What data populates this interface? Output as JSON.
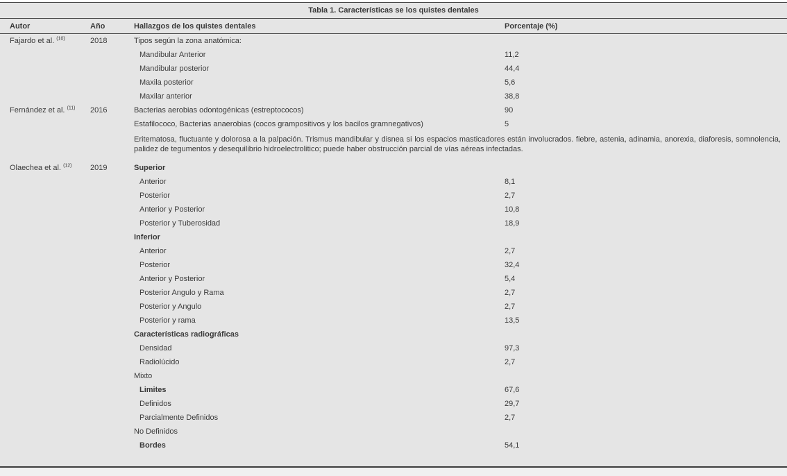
{
  "colors": {
    "table_background": "#e5e5e5",
    "rule_color": "#454545",
    "text_color": "#3a3a3a",
    "footer_strip": "#f0f0f0"
  },
  "table": {
    "title": "Tabla 1. Características se los quistes dentales",
    "headers": {
      "autor": "Autor",
      "ano": "Año",
      "hallazgos": "Hallazgos de los quistes dentales",
      "porcentaje": "Porcentaje (%)"
    },
    "rows": [
      {
        "autor": "Fajardo et al.",
        "ref": "(10)",
        "year": "2018",
        "text": "Tipos según la zona anatómica:",
        "pct": "",
        "indent": 0,
        "bold": false
      },
      {
        "text": "Mandibular Anterior",
        "pct": "11,2",
        "indent": 1,
        "bold": false
      },
      {
        "text": "Mandibular posterior",
        "pct": "44,4",
        "indent": 1,
        "bold": false
      },
      {
        "text": "Maxila posterior",
        "pct": "5,6",
        "indent": 1,
        "bold": false
      },
      {
        "text": "Maxilar anterior",
        "pct": "38,8",
        "indent": 1,
        "bold": false
      },
      {
        "autor": "Fernández et al.",
        "ref": "(11)",
        "year": "2016",
        "text": "Bacterias aerobias odontogénicas (estreptococos)",
        "pct": "90",
        "indent": 0,
        "bold": false
      },
      {
        "text": "Estafilococo, Bacterias anaerobias (cocos grampositivos y los bacilos gramnegativos)",
        "pct": "5",
        "indent": 0,
        "bold": false
      },
      {
        "paragraph": true,
        "text": "Eritematosa, fluctuante y dolorosa a la palpación. Trismus mandibular y disnea si los espacios masticadores están involucrados. fiebre, astenia, adinamia, anorexia, diaforesis, somnolencia, palidez de tegumentos y desequilibrio hidroelectrolitico; puede haber obstrucción parcial de vías aéreas infectadas."
      },
      {
        "autor": "Olaechea et al.",
        "ref": "(12)",
        "year": "2019",
        "text": "Superior",
        "pct": "",
        "indent": 0,
        "bold": true
      },
      {
        "text": "Anterior",
        "pct": "8,1",
        "indent": 1,
        "bold": false
      },
      {
        "text": "Posterior",
        "pct": "2,7",
        "indent": 1,
        "bold": false
      },
      {
        "text": "Anterior y Posterior",
        "pct": "10,8",
        "indent": 1,
        "bold": false
      },
      {
        "text": "Posterior y Tuberosidad",
        "pct": "18,9",
        "indent": 1,
        "bold": false
      },
      {
        "text": "Inferior",
        "pct": "",
        "indent": 0,
        "bold": true
      },
      {
        "text": "Anterior",
        "pct": "2,7",
        "indent": 1,
        "bold": false
      },
      {
        "text": "Posterior",
        "pct": "32,4",
        "indent": 1,
        "bold": false
      },
      {
        "text": "Anterior y Posterior",
        "pct": "5,4",
        "indent": 1,
        "bold": false
      },
      {
        "text": "Posterior Angulo y Rama",
        "pct": "2,7",
        "indent": 1,
        "bold": false
      },
      {
        "text": "Posterior y Angulo",
        "pct": "2,7",
        "indent": 1,
        "bold": false
      },
      {
        "text": "Posterior y rama",
        "pct": "13,5",
        "indent": 1,
        "bold": false
      },
      {
        "text": "Características radiográficas",
        "pct": "",
        "indent": 0,
        "bold": true
      },
      {
        "text": "Densidad",
        "pct": "97,3",
        "indent": 1,
        "bold": false
      },
      {
        "text": "Radiolúcido",
        "pct": "2,7",
        "indent": 1,
        "bold": false
      },
      {
        "text": "Mixto",
        "pct": "",
        "indent": 0,
        "bold": false
      },
      {
        "text": "Limites",
        "pct": "67,6",
        "indent": 1,
        "bold": true
      },
      {
        "text": "Definidos",
        "pct": "29,7",
        "indent": 1,
        "bold": false
      },
      {
        "text": "Parcialmente Definidos",
        "pct": "2,7",
        "indent": 1,
        "bold": false
      },
      {
        "text": "No Definidos",
        "pct": "",
        "indent": 0,
        "bold": false
      },
      {
        "text": "Bordes",
        "pct": "54,1",
        "indent": 1,
        "bold": true
      }
    ]
  }
}
